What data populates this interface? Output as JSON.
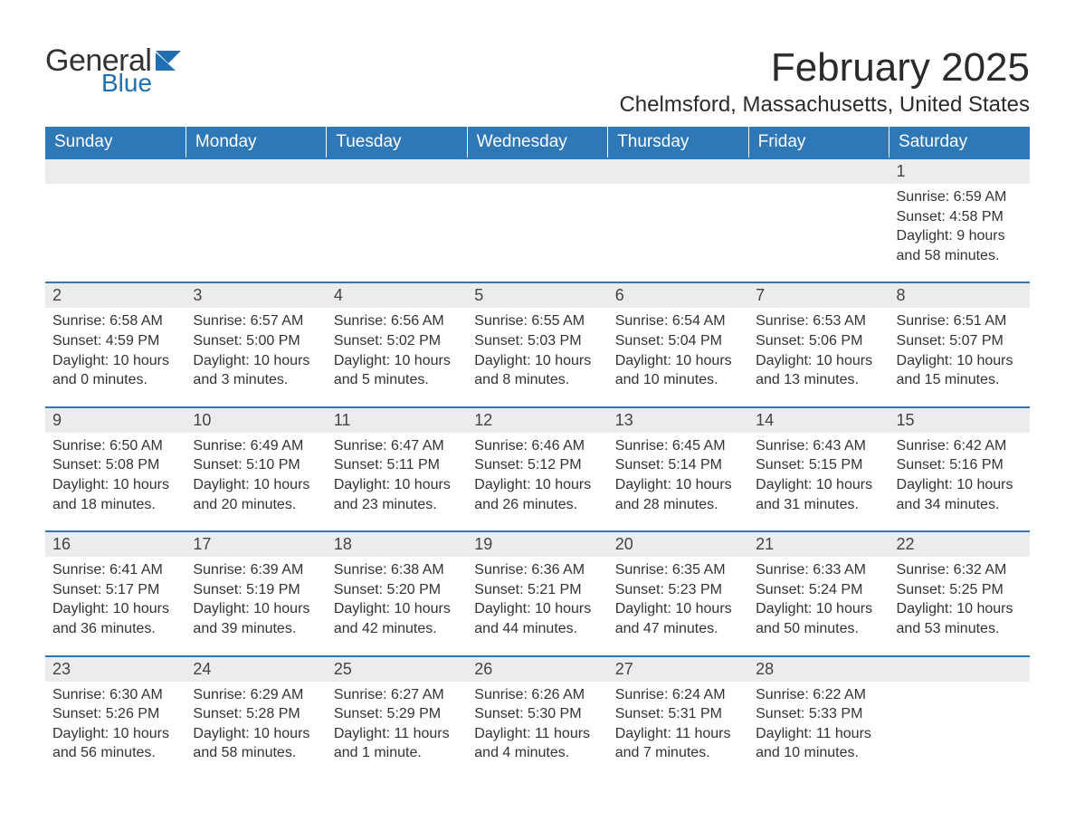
{
  "logo": {
    "general": "General",
    "blue": "Blue",
    "icon_color": "#1f6fb2"
  },
  "title": "February 2025",
  "location": "Chelmsford, Massachusetts, United States",
  "colors": {
    "header_bg": "#2f78b7",
    "header_text": "#ffffff",
    "daynum_bg": "#ececec",
    "daynum_border": "#2f78b7",
    "body_text": "#333333",
    "page_bg": "#ffffff"
  },
  "typography": {
    "title_fontsize": 44,
    "location_fontsize": 24,
    "header_fontsize": 19,
    "daynum_fontsize": 18,
    "body_fontsize": 16,
    "font_family": "Arial"
  },
  "layout": {
    "columns": 7,
    "rows": 5,
    "first_weekday": "Sunday",
    "leading_blanks": 6
  },
  "weekdays": [
    "Sunday",
    "Monday",
    "Tuesday",
    "Wednesday",
    "Thursday",
    "Friday",
    "Saturday"
  ],
  "days": [
    {
      "n": "1",
      "sunrise": "6:59 AM",
      "sunset": "4:58 PM",
      "daylight": "9 hours and 58 minutes."
    },
    {
      "n": "2",
      "sunrise": "6:58 AM",
      "sunset": "4:59 PM",
      "daylight": "10 hours and 0 minutes."
    },
    {
      "n": "3",
      "sunrise": "6:57 AM",
      "sunset": "5:00 PM",
      "daylight": "10 hours and 3 minutes."
    },
    {
      "n": "4",
      "sunrise": "6:56 AM",
      "sunset": "5:02 PM",
      "daylight": "10 hours and 5 minutes."
    },
    {
      "n": "5",
      "sunrise": "6:55 AM",
      "sunset": "5:03 PM",
      "daylight": "10 hours and 8 minutes."
    },
    {
      "n": "6",
      "sunrise": "6:54 AM",
      "sunset": "5:04 PM",
      "daylight": "10 hours and 10 minutes."
    },
    {
      "n": "7",
      "sunrise": "6:53 AM",
      "sunset": "5:06 PM",
      "daylight": "10 hours and 13 minutes."
    },
    {
      "n": "8",
      "sunrise": "6:51 AM",
      "sunset": "5:07 PM",
      "daylight": "10 hours and 15 minutes."
    },
    {
      "n": "9",
      "sunrise": "6:50 AM",
      "sunset": "5:08 PM",
      "daylight": "10 hours and 18 minutes."
    },
    {
      "n": "10",
      "sunrise": "6:49 AM",
      "sunset": "5:10 PM",
      "daylight": "10 hours and 20 minutes."
    },
    {
      "n": "11",
      "sunrise": "6:47 AM",
      "sunset": "5:11 PM",
      "daylight": "10 hours and 23 minutes."
    },
    {
      "n": "12",
      "sunrise": "6:46 AM",
      "sunset": "5:12 PM",
      "daylight": "10 hours and 26 minutes."
    },
    {
      "n": "13",
      "sunrise": "6:45 AM",
      "sunset": "5:14 PM",
      "daylight": "10 hours and 28 minutes."
    },
    {
      "n": "14",
      "sunrise": "6:43 AM",
      "sunset": "5:15 PM",
      "daylight": "10 hours and 31 minutes."
    },
    {
      "n": "15",
      "sunrise": "6:42 AM",
      "sunset": "5:16 PM",
      "daylight": "10 hours and 34 minutes."
    },
    {
      "n": "16",
      "sunrise": "6:41 AM",
      "sunset": "5:17 PM",
      "daylight": "10 hours and 36 minutes."
    },
    {
      "n": "17",
      "sunrise": "6:39 AM",
      "sunset": "5:19 PM",
      "daylight": "10 hours and 39 minutes."
    },
    {
      "n": "18",
      "sunrise": "6:38 AM",
      "sunset": "5:20 PM",
      "daylight": "10 hours and 42 minutes."
    },
    {
      "n": "19",
      "sunrise": "6:36 AM",
      "sunset": "5:21 PM",
      "daylight": "10 hours and 44 minutes."
    },
    {
      "n": "20",
      "sunrise": "6:35 AM",
      "sunset": "5:23 PM",
      "daylight": "10 hours and 47 minutes."
    },
    {
      "n": "21",
      "sunrise": "6:33 AM",
      "sunset": "5:24 PM",
      "daylight": "10 hours and 50 minutes."
    },
    {
      "n": "22",
      "sunrise": "6:32 AM",
      "sunset": "5:25 PM",
      "daylight": "10 hours and 53 minutes."
    },
    {
      "n": "23",
      "sunrise": "6:30 AM",
      "sunset": "5:26 PM",
      "daylight": "10 hours and 56 minutes."
    },
    {
      "n": "24",
      "sunrise": "6:29 AM",
      "sunset": "5:28 PM",
      "daylight": "10 hours and 58 minutes."
    },
    {
      "n": "25",
      "sunrise": "6:27 AM",
      "sunset": "5:29 PM",
      "daylight": "11 hours and 1 minute."
    },
    {
      "n": "26",
      "sunrise": "6:26 AM",
      "sunset": "5:30 PM",
      "daylight": "11 hours and 4 minutes."
    },
    {
      "n": "27",
      "sunrise": "6:24 AM",
      "sunset": "5:31 PM",
      "daylight": "11 hours and 7 minutes."
    },
    {
      "n": "28",
      "sunrise": "6:22 AM",
      "sunset": "5:33 PM",
      "daylight": "11 hours and 10 minutes."
    }
  ],
  "labels": {
    "sunrise": "Sunrise: ",
    "sunset": "Sunset: ",
    "daylight": "Daylight: "
  }
}
